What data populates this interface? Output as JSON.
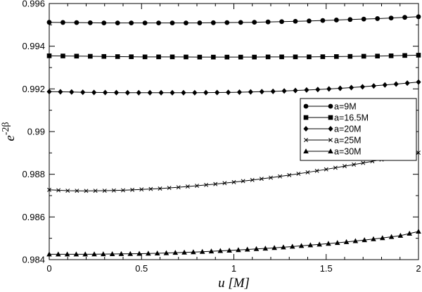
{
  "chart_data": {
    "type": "line",
    "title": "",
    "xlabel": "u [M]",
    "ylabel": {
      "base": "e",
      "superscript": "-2β"
    },
    "xlim": [
      0,
      2
    ],
    "ylim": [
      0.984,
      0.996
    ],
    "grid": false,
    "legend_position": "right",
    "x_ticks": [
      "0",
      "0.5",
      "1",
      "1.5",
      "2"
    ],
    "y_ticks": [
      "0.984",
      "0.986",
      "0.988",
      "0.99",
      "0.992",
      "0.994",
      "0.996"
    ],
    "x": [
      0,
      0.1,
      0.2,
      0.3,
      0.4,
      0.5,
      0.6,
      0.7,
      0.8,
      0.9,
      1.0,
      1.1,
      1.2,
      1.3,
      1.4,
      1.5,
      1.6,
      1.7,
      1.8,
      1.9,
      2.0
    ],
    "series": [
      {
        "name": "a=9M",
        "marker": "circle",
        "values": [
          0.99512,
          0.99511,
          0.9951,
          0.99509,
          0.99509,
          0.99509,
          0.99509,
          0.99509,
          0.99509,
          0.9951,
          0.99511,
          0.99512,
          0.99514,
          0.99516,
          0.99518,
          0.99521,
          0.99524,
          0.99527,
          0.9953,
          0.99534,
          0.99538
        ]
      },
      {
        "name": "a=16.5M",
        "marker": "square",
        "values": [
          0.99355,
          0.99354,
          0.99353,
          0.99352,
          0.99351,
          0.9935,
          0.9935,
          0.9935,
          0.99349,
          0.99349,
          0.99349,
          0.99349,
          0.9935,
          0.9935,
          0.9935,
          0.99351,
          0.99352,
          0.99353,
          0.99354,
          0.99356,
          0.99358
        ]
      },
      {
        "name": "a=20M",
        "marker": "diamond",
        "values": [
          0.99187,
          0.99186,
          0.99184,
          0.99183,
          0.99182,
          0.99182,
          0.99182,
          0.99182,
          0.99182,
          0.99183,
          0.99184,
          0.99186,
          0.99188,
          0.99191,
          0.99195,
          0.99199,
          0.99204,
          0.9921,
          0.99217,
          0.99224,
          0.99232
        ]
      },
      {
        "name": "a=25M",
        "marker": "x",
        "values": [
          0.98727,
          0.98723,
          0.98722,
          0.98723,
          0.98725,
          0.98729,
          0.98733,
          0.98739,
          0.98746,
          0.98754,
          0.98763,
          0.98773,
          0.98784,
          0.98796,
          0.98809,
          0.98823,
          0.98838,
          0.98853,
          0.98869,
          0.98885,
          0.98901
        ]
      },
      {
        "name": "a=30M",
        "marker": "triangle",
        "values": [
          0.98425,
          0.98425,
          0.98425,
          0.98426,
          0.98427,
          0.98428,
          0.9843,
          0.98433,
          0.98436,
          0.9844,
          0.98444,
          0.98449,
          0.98454,
          0.9846,
          0.98467,
          0.98474,
          0.98482,
          0.98491,
          0.98501,
          0.98512,
          0.98532
        ]
      }
    ]
  }
}
